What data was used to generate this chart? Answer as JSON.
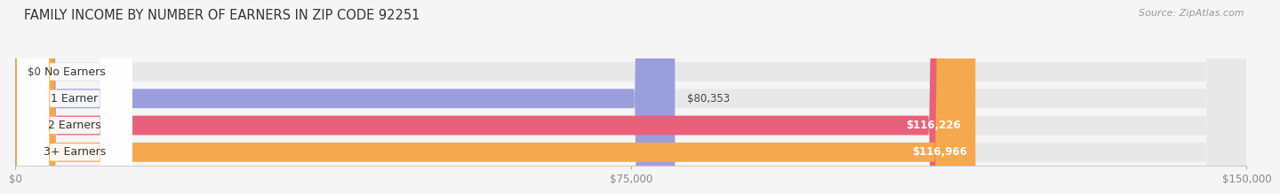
{
  "title": "FAMILY INCOME BY NUMBER OF EARNERS IN ZIP CODE 92251",
  "source": "Source: ZipAtlas.com",
  "categories": [
    "No Earners",
    "1 Earner",
    "2 Earners",
    "3+ Earners"
  ],
  "values": [
    0,
    80353,
    116226,
    116966
  ],
  "labels": [
    "$0",
    "$80,353",
    "$116,226",
    "$116,966"
  ],
  "label_inside": [
    false,
    false,
    true,
    true
  ],
  "bar_colors": [
    "#5ecfcf",
    "#9b9edd",
    "#e8607a",
    "#f5a84e"
  ],
  "bar_bg_color": "#e8e8e8",
  "xmax": 150000,
  "xtick_labels": [
    "$0",
    "$75,000",
    "$150,000"
  ],
  "xtick_vals": [
    0,
    75000,
    150000
  ],
  "title_fontsize": 10.5,
  "source_fontsize": 8,
  "label_fontsize": 9,
  "value_fontsize": 8.5,
  "tick_fontsize": 8.5,
  "fig_bg_color": "#f5f5f5",
  "bar_bg_shadow": "#d8d8d8"
}
